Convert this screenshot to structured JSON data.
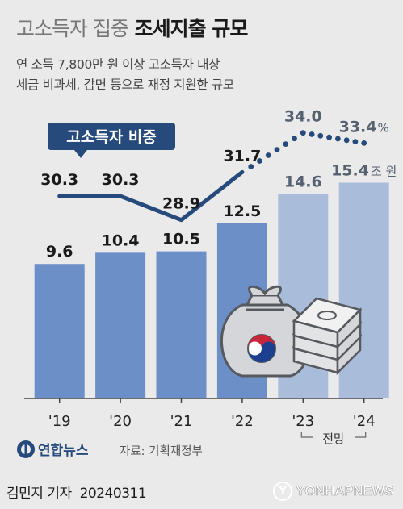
{
  "header": {
    "title_light": "고소득자 집중",
    "title_bold": "조세지출 규모",
    "subtitle_line1": "연 소득 7,800만 원 이상 고소득자 대상",
    "subtitle_line2": "세금 비과세, 감면 등으로 재정 지원한 규모"
  },
  "chart_data": {
    "type": "bar",
    "categories": [
      "'19",
      "'20",
      "'21",
      "'22",
      "'23",
      "'24"
    ],
    "projection_label": "전망",
    "projected_from_index": 4,
    "bars": {
      "values": [
        9.6,
        10.4,
        10.5,
        12.5,
        14.6,
        15.4
      ],
      "labels": [
        "9.6",
        "10.4",
        "10.5",
        "12.5",
        "14.6",
        "15.4"
      ],
      "unit_label": "조 원",
      "ylim": [
        0,
        17.5
      ]
    },
    "line": {
      "name": "고소득자 비중",
      "values": [
        30.3,
        30.3,
        28.9,
        31.7,
        34.0,
        33.4
      ],
      "labels": [
        "30.3",
        "30.3",
        "28.9",
        "31.7",
        "34.0",
        "33.4"
      ],
      "unit_label": "%",
      "ylim": [
        27.8,
        34.6
      ]
    },
    "colors": {
      "bar_actual": "#6c8fc7",
      "bar_projected": "#a9bcda",
      "line": "#274a7c",
      "axis": "#444444",
      "value_actual": "#1a1a1a",
      "value_projected": "#556070"
    },
    "xlabel": "",
    "ylabel": "",
    "grid": false,
    "legend": "label-box"
  },
  "footer": {
    "logo_text": "연합뉴스",
    "source": "자료: 기획재정부",
    "author": "김민지 기자",
    "date": "20240311",
    "watermark": "YONHAPNEWS"
  }
}
